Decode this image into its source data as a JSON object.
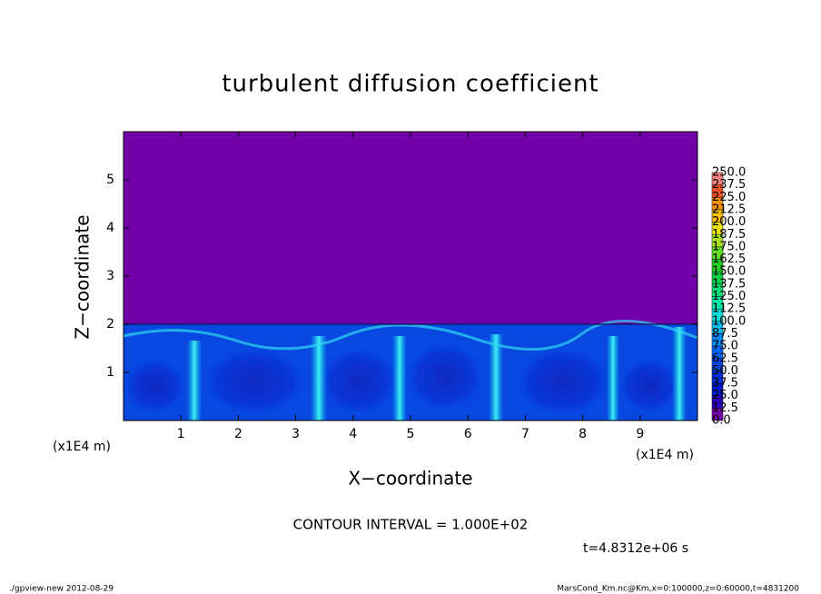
{
  "chart_data": {
    "type": "heatmap",
    "title": "turbulent diffusion coefficient",
    "x_label": "X−coordinate",
    "y_label": "Z−coordinate",
    "x_unit_label": "(x1E4 m)",
    "y_unit_label": "(x1E4 m)",
    "xlim": [
      0,
      10
    ],
    "ylim": [
      0,
      6
    ],
    "xticks": [
      1,
      2,
      3,
      4,
      5,
      6,
      7,
      8,
      9
    ],
    "yticks": [
      1,
      2,
      3,
      4,
      5
    ],
    "grid": false,
    "colorbar": {
      "levels": [
        {
          "value": 0,
          "label": "0.0"
        },
        {
          "value": 12.5,
          "label": "12.5"
        },
        {
          "value": 25,
          "label": "25.0"
        },
        {
          "value": 37.5,
          "label": "37.5"
        },
        {
          "value": 50,
          "label": "50.0"
        },
        {
          "value": 62.5,
          "label": "62.5"
        },
        {
          "value": 75,
          "label": "75.0"
        },
        {
          "value": 87.5,
          "label": "87.5"
        },
        {
          "value": 100,
          "label": "100.0"
        },
        {
          "value": 112.5,
          "label": "112.5"
        },
        {
          "value": 125,
          "label": "125.0"
        },
        {
          "value": 137.5,
          "label": "137.5"
        },
        {
          "value": 150,
          "label": "150.0"
        },
        {
          "value": 162.5,
          "label": "162.5"
        },
        {
          "value": 175,
          "label": "175.0"
        },
        {
          "value": 187.5,
          "label": "187.5"
        },
        {
          "value": 200,
          "label": "200.0"
        },
        {
          "value": 212.5,
          "label": "212.5"
        },
        {
          "value": 225,
          "label": "225.0"
        },
        {
          "value": 237.5,
          "label": "237.5"
        },
        {
          "value": 250,
          "label": "250.0"
        }
      ],
      "colors": [
        "#7200a8",
        "#2a00b8",
        "#0018c8",
        "#0030dc",
        "#0048ec",
        "#0064f4",
        "#0088f8",
        "#00b8f0",
        "#00e0d8",
        "#00e8a8",
        "#00e078",
        "#00d048",
        "#20d020",
        "#60e020",
        "#a8e020",
        "#e8e000",
        "#f8c000",
        "#f89000",
        "#f05020",
        "#f08080"
      ]
    },
    "annotations": [
      "CONTOUR INTERVAL = 1.000E+02",
      "t=4.8312e+06 s"
    ],
    "footer_left": "./gpview-new  2012-08-29",
    "footer_right": "MarsCond_Km.nc@Km,x=0:100000,z=0:60000,t=4831200"
  }
}
